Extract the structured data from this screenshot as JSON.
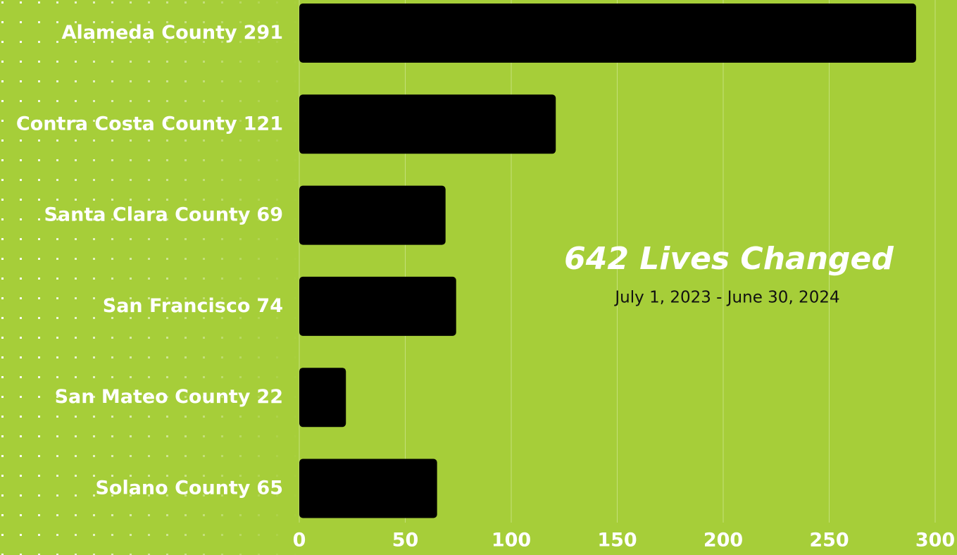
{
  "chart_data": {
    "type": "bar",
    "orientation": "horizontal",
    "categories": [
      "Alameda County",
      "Contra Costa County",
      "Santa Clara County",
      "San Francisco",
      "San Mateo County",
      "Solano County"
    ],
    "values": [
      291,
      121,
      69,
      74,
      22,
      65
    ],
    "color": "#000000",
    "xlim": [
      0,
      300
    ],
    "xticks": [
      0,
      50,
      100,
      150,
      200,
      250,
      300
    ],
    "grid": true,
    "annotation": "642 Lives Changed",
    "annotation_subtitle": "July 1, 2023 - June 30, 2024"
  }
}
